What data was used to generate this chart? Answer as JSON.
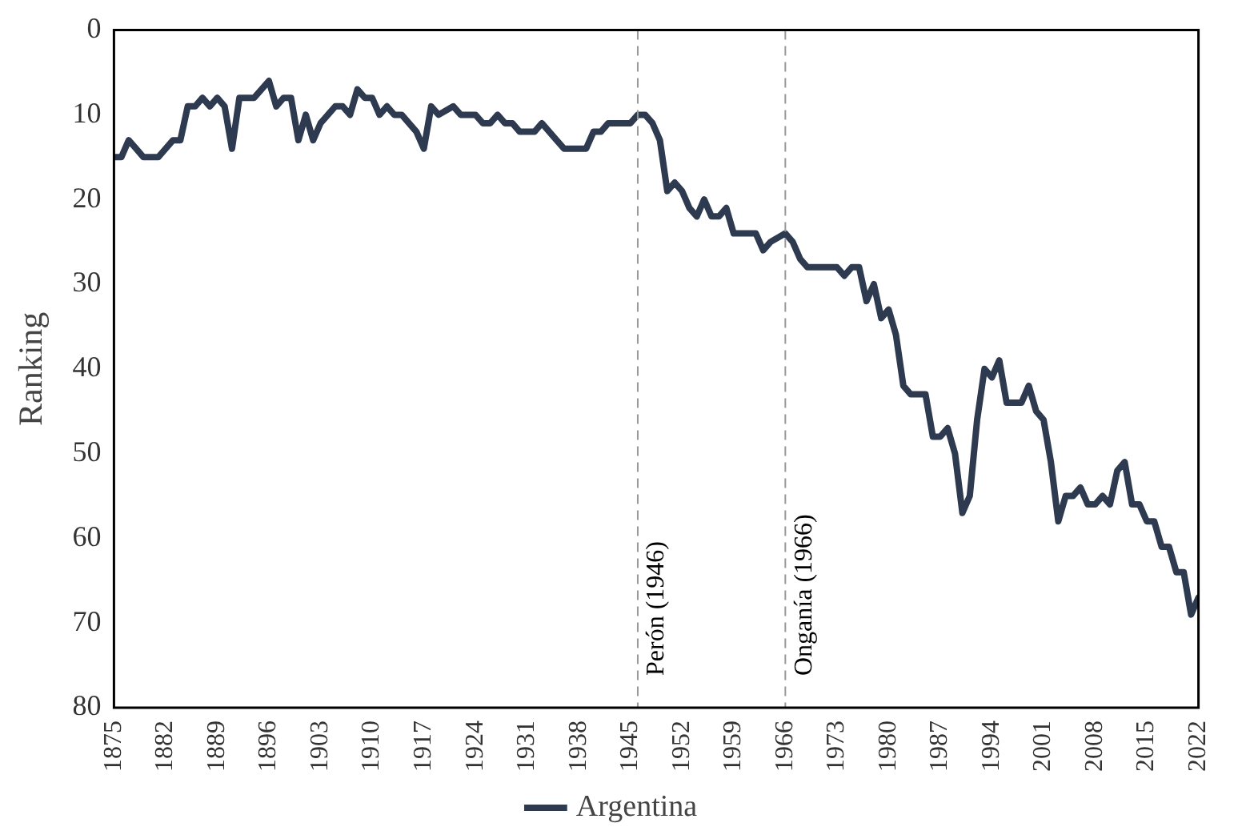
{
  "chart_data": {
    "type": "line",
    "ylabel": "Ranking",
    "xlim": [
      1875,
      2022
    ],
    "xticks": [
      1875,
      1882,
      1889,
      1896,
      1903,
      1910,
      1917,
      1924,
      1931,
      1938,
      1945,
      1952,
      1959,
      1966,
      1973,
      1980,
      1987,
      1994,
      2001,
      2008,
      2015,
      2022
    ],
    "ylim": [
      80,
      0
    ],
    "yticks": [
      0,
      10,
      20,
      30,
      40,
      50,
      60,
      70,
      80
    ],
    "grid": false,
    "legend": "bottom",
    "marker": "none",
    "line_style": "solid",
    "series": [
      {
        "name": "Argentina",
        "color": "#2e3a4f",
        "x": [
          1875,
          1876,
          1877,
          1878,
          1879,
          1881,
          1883,
          1884,
          1885,
          1886,
          1887,
          1888,
          1889,
          1890,
          1891,
          1892,
          1894,
          1896,
          1897,
          1898,
          1899,
          1900,
          1901,
          1902,
          1903,
          1905,
          1906,
          1907,
          1908,
          1909,
          1910,
          1911,
          1912,
          1913,
          1914,
          1916,
          1917,
          1918,
          1919,
          1921,
          1922,
          1924,
          1925,
          1926,
          1927,
          1928,
          1929,
          1930,
          1932,
          1933,
          1935,
          1936,
          1939,
          1940,
          1941,
          1942,
          1945,
          1946,
          1947,
          1948,
          1949,
          1950,
          1951,
          1952,
          1953,
          1954,
          1955,
          1956,
          1957,
          1958,
          1959,
          1962,
          1963,
          1964,
          1966,
          1967,
          1968,
          1969,
          1973,
          1974,
          1975,
          1976,
          1977,
          1978,
          1979,
          1980,
          1981,
          1982,
          1983,
          1985,
          1986,
          1987,
          1988,
          1989,
          1990,
          1991,
          1992,
          1993,
          1994,
          1995,
          1996,
          1998,
          1999,
          2000,
          2001,
          2002,
          2003,
          2004,
          2005,
          2006,
          2007,
          2008,
          2009,
          2010,
          2011,
          2012,
          2013,
          2014,
          2015,
          2016,
          2017,
          2018,
          2019,
          2020,
          2021,
          2022
        ],
        "values": [
          15,
          15,
          13,
          14,
          15,
          15,
          13,
          13,
          9,
          9,
          8,
          9,
          8,
          9,
          14,
          8,
          8,
          6,
          9,
          8,
          8,
          13,
          10,
          13,
          11,
          9,
          9,
          10,
          7,
          8,
          8,
          10,
          9,
          10,
          10,
          12,
          14,
          9,
          10,
          9,
          10,
          10,
          11,
          11,
          10,
          11,
          11,
          12,
          12,
          11,
          13,
          14,
          14,
          12,
          12,
          11,
          11,
          10,
          10,
          11,
          13,
          19,
          18,
          19,
          21,
          22,
          20,
          22,
          22,
          21,
          24,
          24,
          26,
          25,
          24,
          25,
          27,
          28,
          28,
          29,
          28,
          28,
          32,
          30,
          34,
          33,
          36,
          42,
          43,
          43,
          48,
          48,
          47,
          50,
          57,
          55,
          46,
          40,
          41,
          39,
          44,
          44,
          42,
          45,
          46,
          51,
          58,
          55,
          55,
          54,
          56,
          56,
          55,
          56,
          52,
          51,
          56,
          56,
          58,
          58,
          61,
          61,
          64,
          64,
          69,
          67
        ]
      }
    ],
    "ref_lines": [
      {
        "axis": "x",
        "value": 1946,
        "label": "Perón (1946)",
        "color": "#999999",
        "line_style": "dashed"
      },
      {
        "axis": "x",
        "value": 1966,
        "label": "Onganía (1966)",
        "color": "#999999",
        "line_style": "dashed"
      }
    ]
  }
}
